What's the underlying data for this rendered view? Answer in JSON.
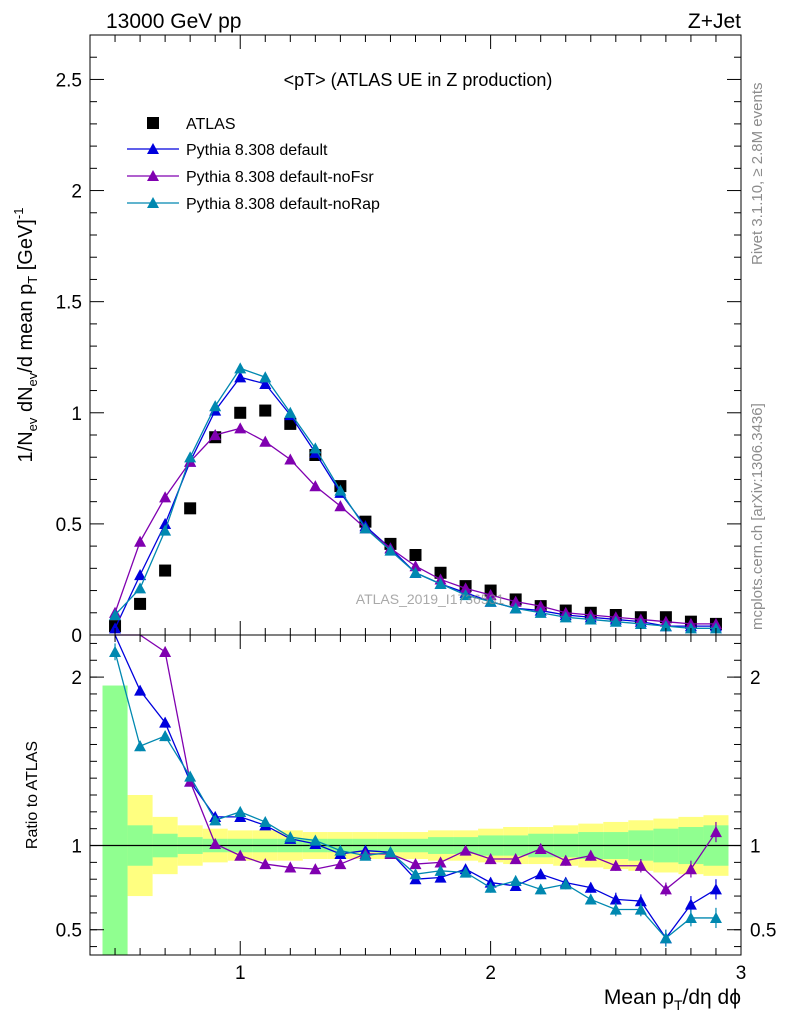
{
  "header": {
    "left": "13000 GeV pp",
    "right": "Z+Jet"
  },
  "side": {
    "rivet": "Rivet 3.1.10, ≥ 2.8M events",
    "mcplots": "mcplots.cern.ch [arXiv:1306.3436]"
  },
  "plot_title": "<pT> (ATLAS UE in Z production)",
  "watermark": "ATLAS_2019_I1736531",
  "axes": {
    "ylabel_main": "1/N_ev dN_ev/d mean p_T [GeV]^-1",
    "ylabel_ratio": "Ratio to ATLAS",
    "xlabel": "Mean p_T/dη dϕ"
  },
  "legend": [
    {
      "label": "ATLAS",
      "color": "#000000",
      "marker": "square"
    },
    {
      "label": "Pythia 8.308 default",
      "color": "#0000dd",
      "marker": "triangle"
    },
    {
      "label": "Pythia 8.308 default-noFsr",
      "color": "#8000b0",
      "marker": "triangle"
    },
    {
      "label": "Pythia 8.308 default-noRap",
      "color": "#0088b0",
      "marker": "triangle"
    }
  ],
  "chart_data": [
    {
      "type": "scatter",
      "panel": "main",
      "xlim": [
        0.4,
        3.0
      ],
      "ylim": [
        0,
        2.7
      ],
      "xticks": [
        1,
        2,
        3
      ],
      "yticks": [
        0,
        0.5,
        1,
        1.5,
        2,
        2.5
      ],
      "ytick_labels": [
        "0",
        "0.5",
        "1",
        "1.5",
        "2",
        "2.5"
      ],
      "x": [
        0.5,
        0.6,
        0.7,
        0.8,
        0.9,
        1.0,
        1.1,
        1.2,
        1.3,
        1.4,
        1.5,
        1.6,
        1.7,
        1.8,
        1.9,
        2.0,
        2.1,
        2.2,
        2.3,
        2.4,
        2.5,
        2.6,
        2.7,
        2.8,
        2.9
      ],
      "series": [
        {
          "name": "ATLAS",
          "color": "#000000",
          "marker": "square",
          "values": [
            0.04,
            0.14,
            0.29,
            0.57,
            0.89,
            1.0,
            1.01,
            0.95,
            0.81,
            0.67,
            0.51,
            0.41,
            0.36,
            0.28,
            0.22,
            0.2,
            0.16,
            0.13,
            0.11,
            0.1,
            0.09,
            0.08,
            0.08,
            0.06,
            0.05
          ]
        },
        {
          "name": "Pythia 8.308 default",
          "color": "#0000dd",
          "marker": "triangle",
          "values": [
            0.03,
            0.27,
            0.5,
            0.78,
            1.01,
            1.16,
            1.13,
            0.99,
            0.82,
            0.64,
            0.49,
            0.39,
            0.28,
            0.23,
            0.19,
            0.15,
            0.12,
            0.11,
            0.09,
            0.08,
            0.07,
            0.06,
            0.04,
            0.04,
            0.04
          ]
        },
        {
          "name": "Pythia 8.308 default-noFsr",
          "color": "#8000b0",
          "marker": "triangle",
          "values": [
            0.1,
            0.42,
            0.62,
            0.78,
            0.9,
            0.93,
            0.87,
            0.79,
            0.67,
            0.58,
            0.48,
            0.39,
            0.31,
            0.25,
            0.21,
            0.18,
            0.15,
            0.13,
            0.1,
            0.09,
            0.08,
            0.07,
            0.06,
            0.05,
            0.05
          ]
        },
        {
          "name": "Pythia 8.308 default-noRap",
          "color": "#0088b0",
          "marker": "triangle",
          "values": [
            0.09,
            0.21,
            0.47,
            0.8,
            1.03,
            1.2,
            1.16,
            1.0,
            0.84,
            0.65,
            0.48,
            0.38,
            0.28,
            0.23,
            0.18,
            0.15,
            0.12,
            0.1,
            0.08,
            0.07,
            0.06,
            0.05,
            0.04,
            0.03,
            0.03
          ]
        }
      ]
    },
    {
      "type": "scatter",
      "panel": "ratio",
      "xlim": [
        0.4,
        3.0
      ],
      "ylim": [
        0.35,
        2.25
      ],
      "yticks": [
        0.5,
        1,
        2
      ],
      "ytick_labels": [
        "0.5",
        "1",
        "2"
      ],
      "x": [
        0.5,
        0.6,
        0.7,
        0.8,
        0.9,
        1.0,
        1.1,
        1.2,
        1.3,
        1.4,
        1.5,
        1.6,
        1.7,
        1.8,
        1.9,
        2.0,
        2.1,
        2.2,
        2.3,
        2.4,
        2.5,
        2.6,
        2.7,
        2.8,
        2.9
      ],
      "bands": {
        "edges": [
          0.45,
          0.55,
          0.65,
          0.75,
          0.85,
          0.95,
          1.05,
          1.15,
          1.25,
          1.35,
          1.45,
          1.55,
          1.65,
          1.75,
          1.85,
          1.95,
          2.05,
          2.15,
          2.25,
          2.35,
          2.45,
          2.55,
          2.65,
          2.75,
          2.85,
          2.95
        ],
        "yellow": [
          0.65,
          0.3,
          0.17,
          0.12,
          0.1,
          0.09,
          0.09,
          0.09,
          0.08,
          0.08,
          0.08,
          0.08,
          0.08,
          0.09,
          0.09,
          0.1,
          0.11,
          0.11,
          0.12,
          0.13,
          0.14,
          0.15,
          0.16,
          0.17,
          0.18
        ],
        "green": [
          0.95,
          0.12,
          0.07,
          0.05,
          0.04,
          0.04,
          0.04,
          0.04,
          0.04,
          0.04,
          0.04,
          0.04,
          0.04,
          0.05,
          0.05,
          0.06,
          0.06,
          0.07,
          0.07,
          0.08,
          0.08,
          0.09,
          0.1,
          0.11,
          0.12
        ],
        "yellow_color": "#ffff80",
        "green_color": "#90ff90"
      },
      "series": [
        {
          "name": "Pythia 8.308 default",
          "color": "#0000dd",
          "marker": "triangle",
          "values": [
            2.25,
            1.92,
            1.73,
            1.38,
            1.17,
            1.17,
            1.12,
            1.04,
            1.01,
            0.95,
            0.97,
            0.96,
            0.8,
            0.81,
            0.86,
            0.78,
            0.76,
            0.83,
            0.78,
            0.75,
            0.68,
            0.67,
            0.45,
            0.65,
            0.74
          ],
          "errors": [
            0,
            0.03,
            0.03,
            0.02,
            0.02,
            0.02,
            0.02,
            0.02,
            0.02,
            0.02,
            0.02,
            0.02,
            0.02,
            0.02,
            0.02,
            0.03,
            0.03,
            0.03,
            0.03,
            0.03,
            0.04,
            0.04,
            0.05,
            0.05,
            0.06
          ]
        },
        {
          "name": "Pythia 8.308 default-noFsr",
          "color": "#8000b0",
          "marker": "triangle",
          "values": [
            2.25,
            2.25,
            2.15,
            1.38,
            1.01,
            0.94,
            0.89,
            0.87,
            0.86,
            0.89,
            0.95,
            0.95,
            0.89,
            0.9,
            0.97,
            0.92,
            0.92,
            0.98,
            0.91,
            0.94,
            0.88,
            0.88,
            0.74,
            0.86,
            1.08
          ],
          "errors": [
            0,
            0,
            0.03,
            0.02,
            0.02,
            0.02,
            0.02,
            0.02,
            0.02,
            0.02,
            0.02,
            0.02,
            0.02,
            0.02,
            0.02,
            0.03,
            0.03,
            0.03,
            0.03,
            0.03,
            0.03,
            0.04,
            0.04,
            0.05,
            0.06
          ]
        },
        {
          "name": "Pythia 8.308 default-noRap",
          "color": "#0088b0",
          "marker": "triangle",
          "values": [
            2.15,
            1.59,
            1.65,
            1.41,
            1.15,
            1.2,
            1.14,
            1.05,
            1.03,
            0.97,
            0.94,
            0.96,
            0.83,
            0.85,
            0.84,
            0.75,
            0.79,
            0.74,
            0.77,
            0.68,
            0.62,
            0.62,
            0.45,
            0.57,
            0.57
          ],
          "errors": [
            0.05,
            0.03,
            0.03,
            0.02,
            0.02,
            0.02,
            0.02,
            0.02,
            0.02,
            0.02,
            0.02,
            0.02,
            0.02,
            0.02,
            0.02,
            0.03,
            0.03,
            0.03,
            0.03,
            0.03,
            0.04,
            0.04,
            0.05,
            0.05,
            0.06
          ]
        }
      ]
    }
  ]
}
